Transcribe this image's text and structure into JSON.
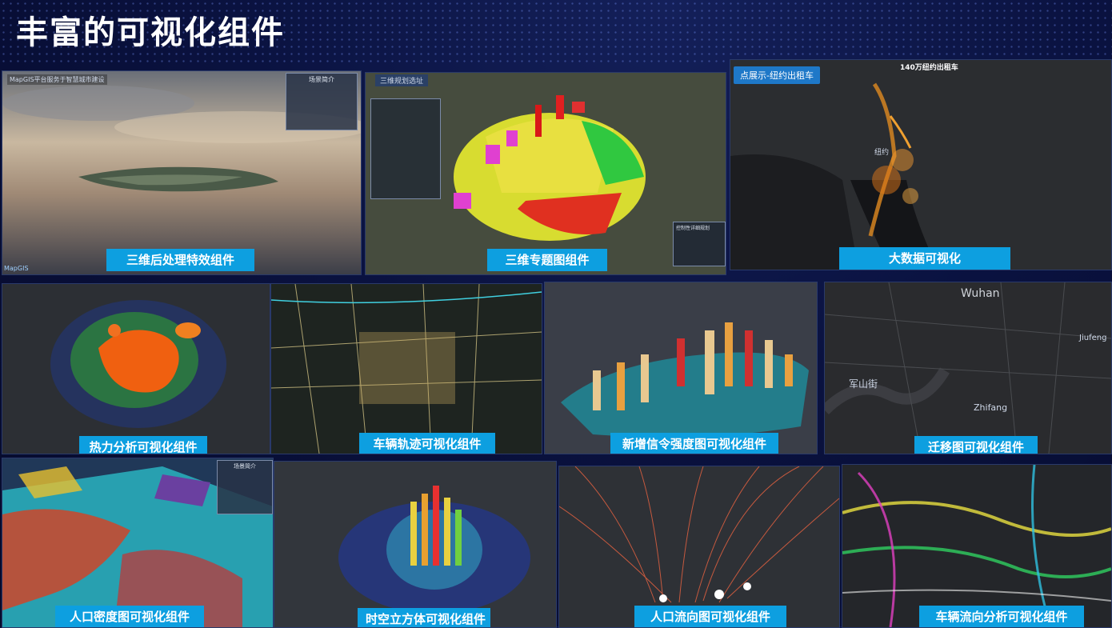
{
  "page": {
    "title": "丰富的可视化组件"
  },
  "tiles": {
    "t1": {
      "caption": "三维后处理特效组件",
      "app_title": "MapGIS平台服务于智慧城市建设",
      "panel_title": "场景简介",
      "logo": "MapGIS"
    },
    "t2": {
      "caption": "三维专题图组件",
      "header": "三维规划选址",
      "legend_title": "控制性详细规划"
    },
    "t3": {
      "caption": "大数据可视化",
      "tag": "点展示-纽约出租车",
      "map_title": "140万纽约出租车",
      "place": "纽约"
    },
    "t4": {
      "caption": "热力分析可视化组件"
    },
    "t5": {
      "caption": "车辆轨迹可视化组件"
    },
    "t6": {
      "caption": "新增信令强度图可视化组件"
    },
    "t7": {
      "caption": "迁移图可视化组件",
      "city": "Wuhan",
      "district1": "Zhifang",
      "district2": "Jiufeng",
      "district3": "军山街"
    },
    "t8": {
      "caption": "人口密度图可视化组件",
      "panel_title": "场景简介"
    },
    "t9": {
      "caption": "时空立方体可视化组件"
    },
    "t10": {
      "caption": "人口流向图可视化组件"
    },
    "t11": {
      "caption": "车辆流向分析可视化组件"
    }
  },
  "colors": {
    "caption_bg": "#0d9fe0",
    "page_bg": "#0a1240"
  }
}
